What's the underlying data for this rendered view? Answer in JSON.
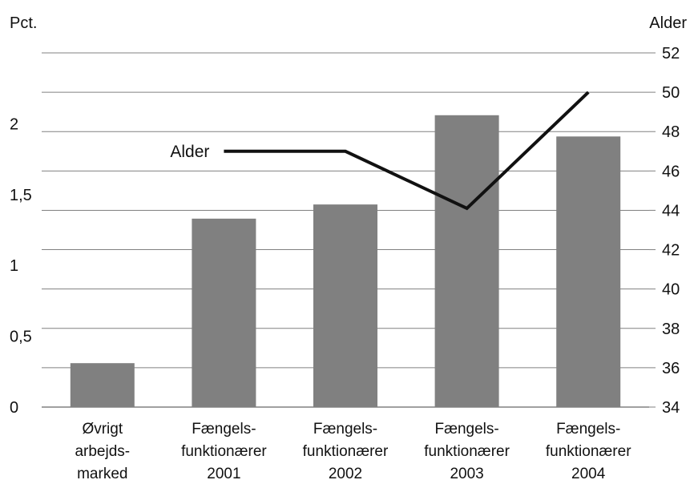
{
  "chart_data": {
    "type": "bar",
    "categories": [
      [
        "Øvrigt",
        "arbejds-",
        "marked"
      ],
      [
        "Fængels-",
        "funktionærer",
        "2001"
      ],
      [
        "Fængels-",
        "funktionærer",
        "2002"
      ],
      [
        "Fængels-",
        "funktionærer",
        "2003"
      ],
      [
        "Fængels-",
        "funktionærer",
        "2004"
      ]
    ],
    "series": [
      {
        "type": "bar",
        "axis": "left",
        "values": [
          0.31,
          1.33,
          1.43,
          2.06,
          1.91
        ],
        "color": "#808080"
      },
      {
        "name": "Alder",
        "type": "line",
        "axis": "right",
        "values": [
          null,
          47.0,
          47.0,
          44.1,
          50.0
        ],
        "color": "#111111"
      }
    ],
    "y_left": {
      "label": "Pct.",
      "range": [
        0,
        2.5
      ],
      "ticks": [
        {
          "value": 0,
          "label": "0"
        },
        {
          "value": 0.5,
          "label": "0,5"
        },
        {
          "value": 1,
          "label": "1"
        },
        {
          "value": 1.5,
          "label": "1,5"
        },
        {
          "value": 2,
          "label": "2"
        }
      ]
    },
    "y_right": {
      "label": "Alder",
      "range": [
        34,
        52
      ],
      "ticks": [
        {
          "value": 34,
          "label": "34"
        },
        {
          "value": 36,
          "label": "36"
        },
        {
          "value": 38,
          "label": "38"
        },
        {
          "value": 40,
          "label": "40"
        },
        {
          "value": 42,
          "label": "42"
        },
        {
          "value": 44,
          "label": "44"
        },
        {
          "value": 46,
          "label": "46"
        },
        {
          "value": 48,
          "label": "48"
        },
        {
          "value": 50,
          "label": "50"
        },
        {
          "value": 52,
          "label": "52"
        }
      ]
    },
    "grid": true,
    "gridline_color": "#808080"
  }
}
